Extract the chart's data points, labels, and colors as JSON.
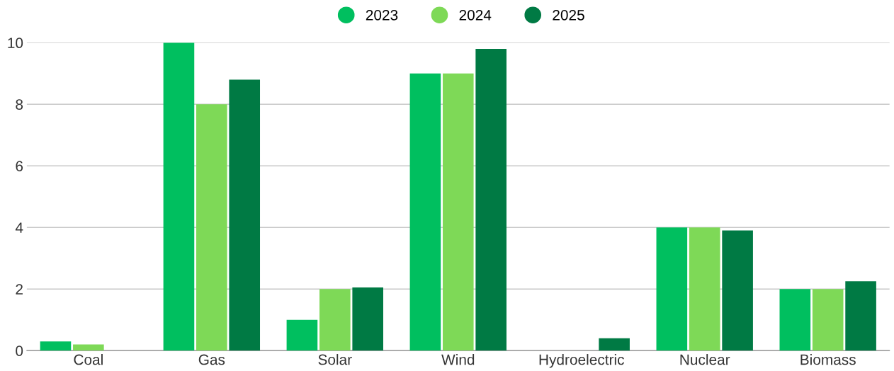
{
  "chart_data": {
    "type": "bar",
    "categories": [
      "Coal",
      "Gas",
      "Solar",
      "Wind",
      "Hydroelectric",
      "Nuclear",
      "Biomass"
    ],
    "series": [
      {
        "name": "2023",
        "color": "#00bf5f",
        "values": [
          0.3,
          10,
          1,
          9,
          0,
          4,
          2
        ]
      },
      {
        "name": "2024",
        "color": "#7ed957",
        "values": [
          0.2,
          8,
          2,
          9,
          0,
          4,
          2
        ]
      },
      {
        "name": "2025",
        "color": "#007a44",
        "values": [
          0,
          8.8,
          2.05,
          9.8,
          0.4,
          3.9,
          2.25
        ]
      }
    ],
    "ylim": [
      0,
      10
    ],
    "yticks": [
      0,
      2,
      4,
      6,
      8,
      10
    ],
    "grid": "y",
    "legend": "top"
  }
}
